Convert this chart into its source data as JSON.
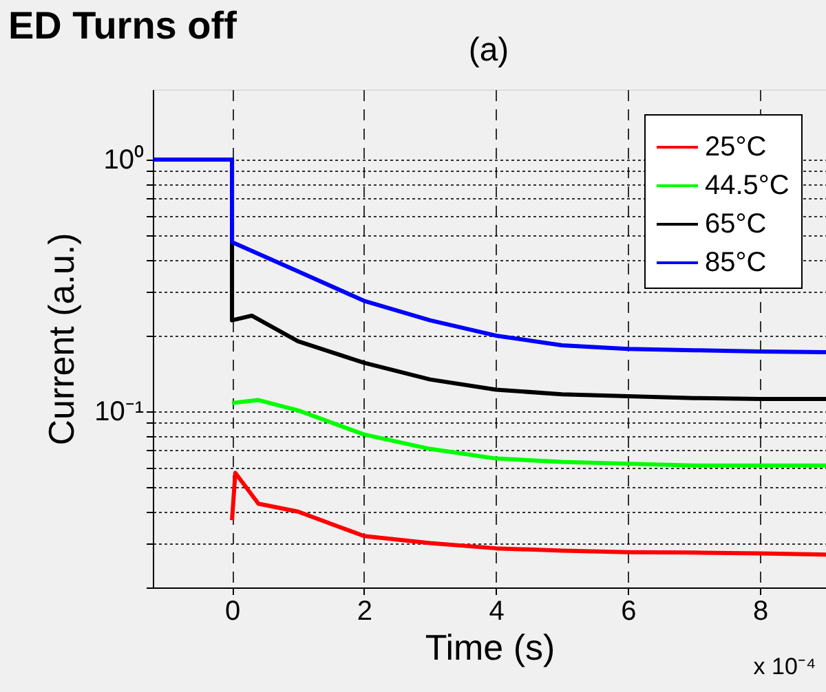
{
  "chart_data": {
    "type": "line",
    "title": "(a)",
    "xlabel": "Time (s)",
    "ylabel": "Current (a.u.)",
    "annotations": [
      "ED Turns off",
      "x 10⁻⁴"
    ],
    "xlim": [
      -1.2,
      9
    ],
    "xticks": [
      0,
      2,
      4,
      6,
      8
    ],
    "ylim": [
      0.02,
      1.9
    ],
    "log": "y",
    "yticks": [
      {
        "value": 0.02,
        "label": null
      },
      {
        "value": 0.03,
        "label": null
      },
      {
        "value": 0.04,
        "label": null
      },
      {
        "value": 0.05,
        "label": null
      },
      {
        "value": 0.06,
        "label": null
      },
      {
        "value": 0.07,
        "label": null
      },
      {
        "value": 0.08,
        "label": null
      },
      {
        "value": 0.09,
        "label": null
      },
      {
        "value": 0.1,
        "label": "10⁻¹"
      },
      {
        "value": 0.2,
        "label": null
      },
      {
        "value": 0.3,
        "label": null
      },
      {
        "value": 0.4,
        "label": null
      },
      {
        "value": 0.5,
        "label": null
      },
      {
        "value": 0.6,
        "label": null
      },
      {
        "value": 0.7,
        "label": null
      },
      {
        "value": 0.8,
        "label": null
      },
      {
        "value": 0.9,
        "label": null
      },
      {
        "value": 1,
        "label": "10⁰"
      }
    ],
    "grid": true,
    "legend": "top right",
    "marker": "none",
    "line_style": "solid",
    "series": [
      {
        "name": "25°C",
        "color": "#ff0000",
        "x": [
          0,
          0.05,
          0.4,
          1,
          2,
          3,
          4,
          5,
          6,
          7,
          8,
          9
        ],
        "values": [
          0.037,
          0.057,
          0.043,
          0.04,
          0.032,
          0.03,
          0.0286,
          0.028,
          0.0276,
          0.0275,
          0.0273,
          0.027
        ]
      },
      {
        "name": "44.5°C",
        "color": "#00ff00",
        "x": [
          0,
          0.4,
          1,
          2,
          3,
          4,
          5,
          6,
          7,
          8,
          9
        ],
        "values": [
          0.108,
          0.111,
          0.101,
          0.081,
          0.071,
          0.065,
          0.063,
          0.062,
          0.061,
          0.061,
          0.061
        ]
      },
      {
        "name": "65°C",
        "color": "#000000",
        "x": [
          -1.2,
          0,
          0,
          0.3,
          1,
          2,
          3,
          4,
          5,
          6,
          7,
          8,
          9
        ],
        "values": [
          1,
          1,
          0.23,
          0.24,
          0.19,
          0.156,
          0.134,
          0.122,
          0.117,
          0.115,
          0.113,
          0.112,
          0.112
        ]
      },
      {
        "name": "85°C",
        "color": "#0000ff",
        "x": [
          -1.2,
          0,
          0,
          1,
          2,
          3,
          4,
          5,
          6,
          7,
          8,
          9
        ],
        "values": [
          1,
          1,
          0.47,
          0.36,
          0.275,
          0.23,
          0.2,
          0.183,
          0.177,
          0.175,
          0.173,
          0.172
        ]
      }
    ]
  }
}
